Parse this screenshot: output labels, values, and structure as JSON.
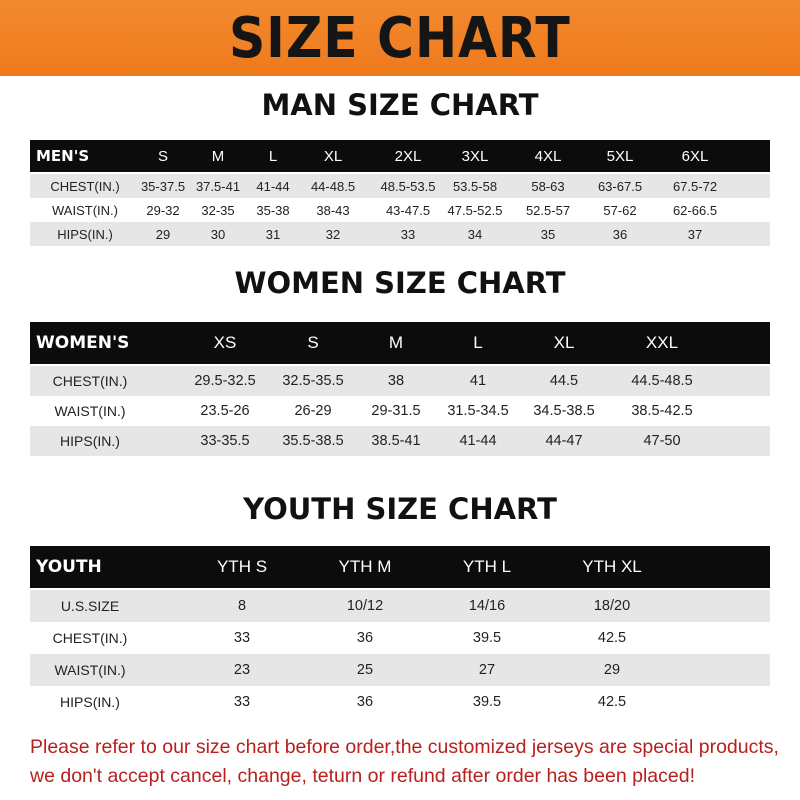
{
  "banner": "SIZE CHART",
  "men": {
    "title": "MAN SIZE CHART",
    "header": [
      "MEN'S",
      "S",
      "M",
      "L",
      "XL",
      "2XL",
      "3XL",
      "4XL",
      "5XL",
      "6XL"
    ],
    "rows": [
      [
        "CHEST(IN.)",
        "35-37.5",
        "37.5-41",
        "41-44",
        "44-48.5",
        "48.5-53.5",
        "53.5-58",
        "58-63",
        "63-67.5",
        "67.5-72"
      ],
      [
        "WAIST(IN.)",
        "29-32",
        "32-35",
        "35-38",
        "38-43",
        "43-47.5",
        "47.5-52.5",
        "52.5-57",
        "57-62",
        "62-66.5"
      ],
      [
        "HIPS(IN.)",
        "29",
        "30",
        "31",
        "32",
        "33",
        "34",
        "35",
        "36",
        "37"
      ]
    ]
  },
  "women": {
    "title": "WOMEN SIZE CHART",
    "header": [
      "WOMEN'S",
      "XS",
      "S",
      "M",
      "L",
      "XL",
      "XXL"
    ],
    "rows": [
      [
        "CHEST(IN.)",
        "29.5-32.5",
        "32.5-35.5",
        "38",
        "41",
        "44.5",
        "44.5-48.5"
      ],
      [
        "WAIST(IN.)",
        "23.5-26",
        "26-29",
        "29-31.5",
        "31.5-34.5",
        "34.5-38.5",
        "38.5-42.5"
      ],
      [
        "HIPS(IN.)",
        "33-35.5",
        "35.5-38.5",
        "38.5-41",
        "41-44",
        "44-47",
        "47-50"
      ]
    ]
  },
  "youth": {
    "title": "YOUTH SIZE CHART",
    "header": [
      "YOUTH",
      "YTH S",
      "YTH M",
      "YTH L",
      "YTH XL"
    ],
    "rows": [
      [
        "U.S.SIZE",
        "8",
        "10/12",
        "14/16",
        "18/20"
      ],
      [
        "CHEST(IN.)",
        "33",
        "36",
        "39.5",
        "42.5"
      ],
      [
        "WAIST(IN.)",
        "23",
        "25",
        "27",
        "29"
      ],
      [
        "HIPS(IN.)",
        "33",
        "36",
        "39.5",
        "42.5"
      ]
    ]
  },
  "footer": {
    "line1": "Please refer to our size chart before order,the customized jerseys are special products,",
    "line2": "we don't accept cancel, change, teturn or refund after order has been placed!"
  }
}
